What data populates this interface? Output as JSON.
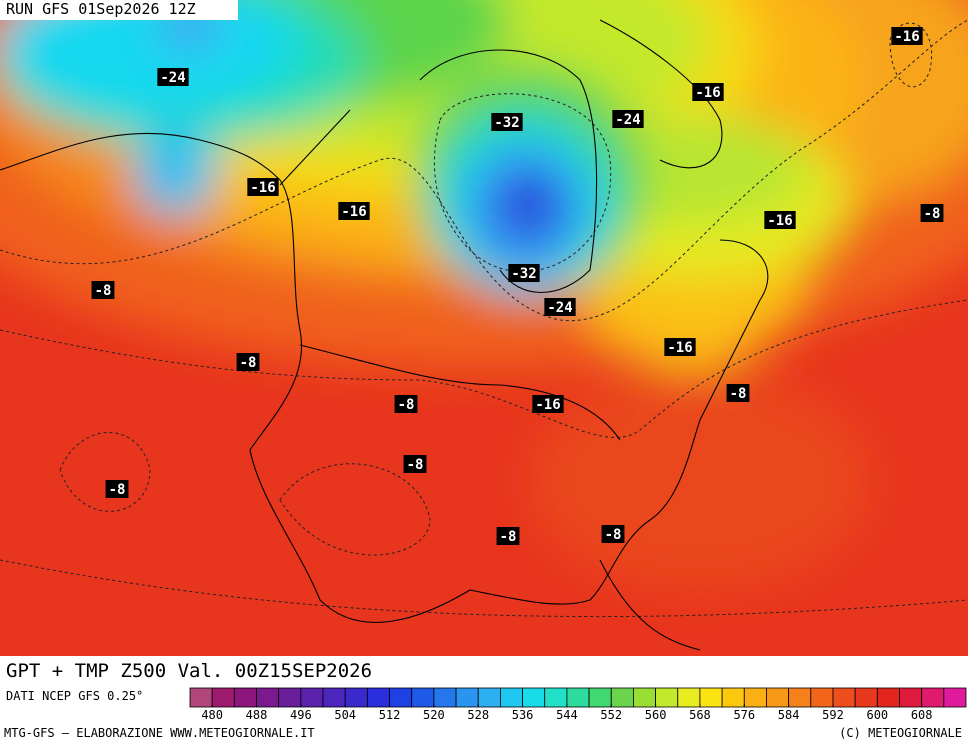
{
  "header": {
    "run": "RUN GFS 01Sep2026 12Z"
  },
  "map": {
    "labels": [
      "-16",
      "-24",
      "-16",
      "-32",
      "-24",
      "-16",
      "-16",
      "-8",
      "-16",
      "-32",
      "-8",
      "-24",
      "-16",
      "-8",
      "-8",
      "-8",
      "-16",
      "-8",
      "-8",
      "-8",
      "-8"
    ]
  },
  "title": "GPT + TMP Z500 Val. 00Z15SEP2026",
  "colorbar": {
    "caption": "DATI NCEP GFS 0.25°",
    "min": 476,
    "max": 616,
    "ticks": [
      480,
      488,
      496,
      504,
      512,
      520,
      528,
      536,
      544,
      552,
      560,
      568,
      576,
      584,
      592,
      600,
      608
    ],
    "colors": [
      "#b0467a",
      "#9e1a6e",
      "#8c167c",
      "#7a1a8c",
      "#6a1e9c",
      "#5a22ac",
      "#4a26bc",
      "#3a2acc",
      "#2a2edc",
      "#1e40e4",
      "#1e5ae8",
      "#2478ec",
      "#2a94f0",
      "#2cb0f2",
      "#1ec8f0",
      "#18dcea",
      "#20e0c8",
      "#2cdc9c",
      "#40d870",
      "#6ad44c",
      "#9ade34",
      "#c4e82c",
      "#e8ec20",
      "#fce414",
      "#fcc80e",
      "#fab014",
      "#f89818",
      "#f6801a",
      "#f2661c",
      "#ee4e1e",
      "#e8381e",
      "#e2261e",
      "#e01a3c",
      "#e01a6c",
      "#e01a9c"
    ]
  },
  "footer": {
    "left": "MTG-GFS — ELABORAZIONE WWW.METEOGIORNALE.IT",
    "right": "(C) METEOGIORNALE"
  }
}
